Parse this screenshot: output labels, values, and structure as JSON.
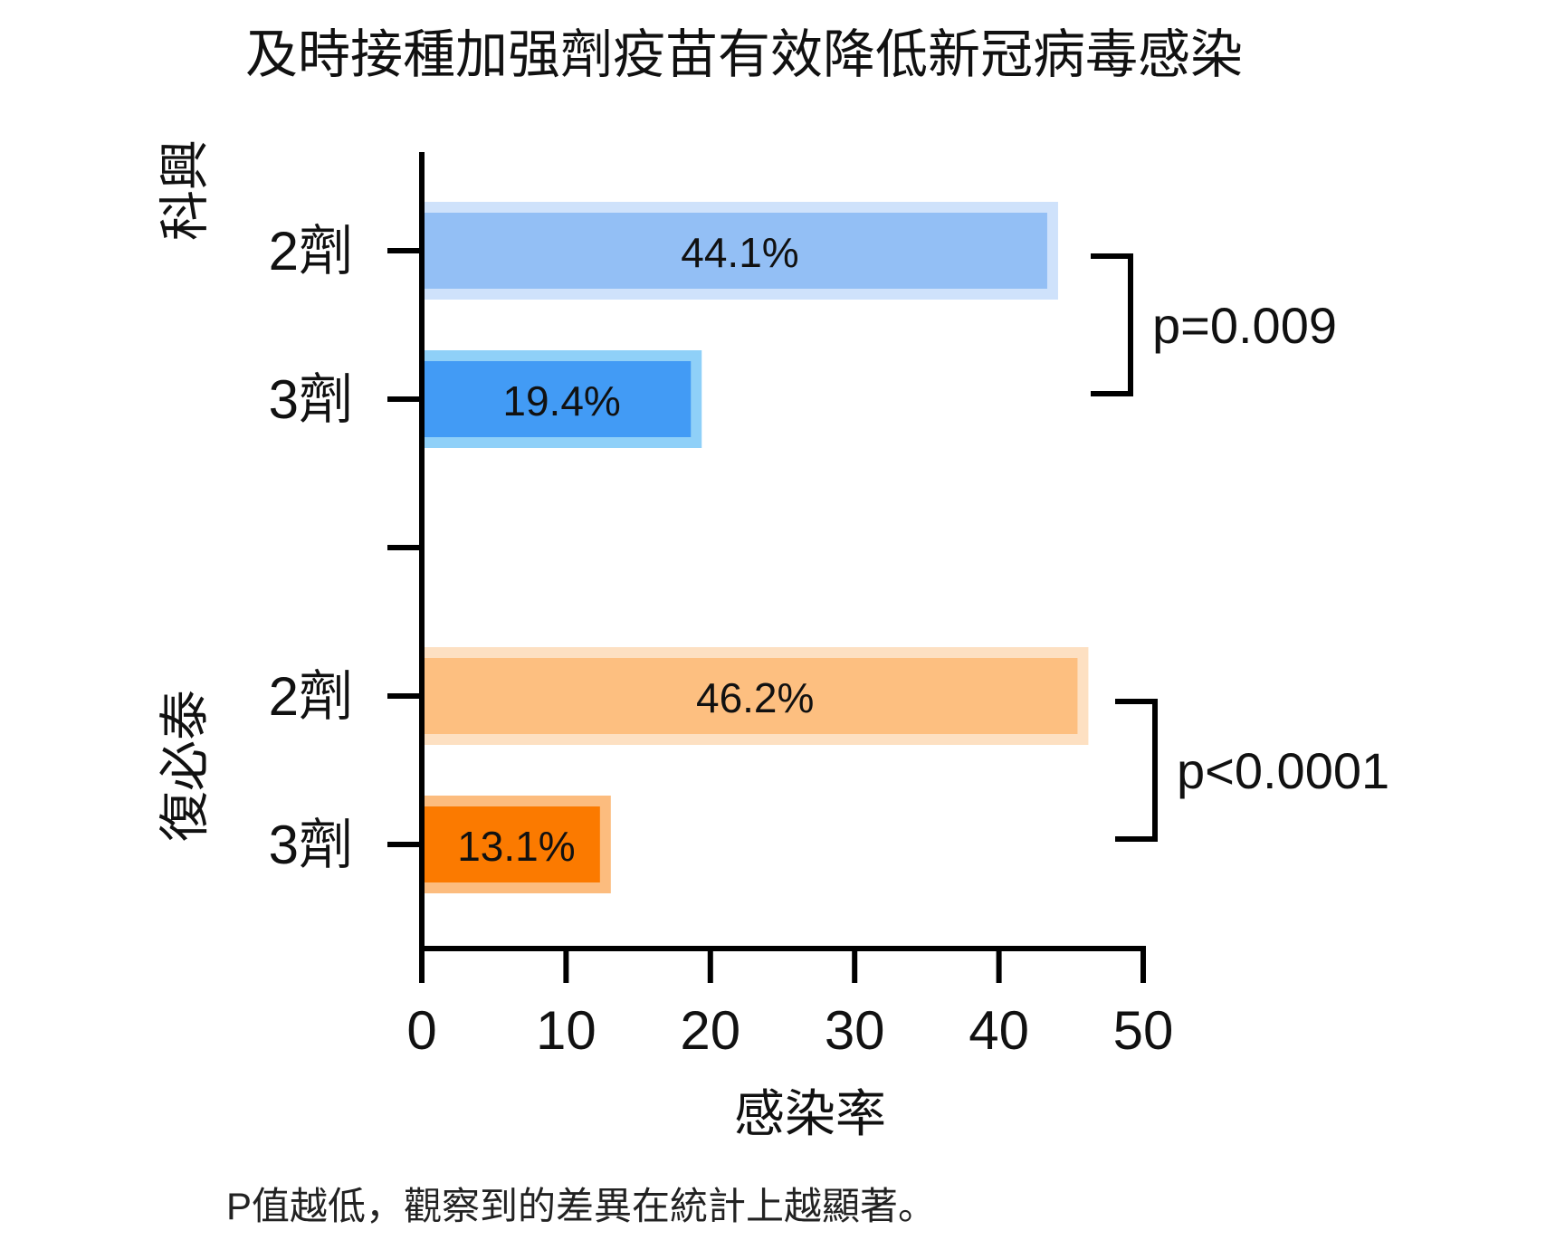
{
  "chart_data": {
    "type": "bar",
    "orientation": "horizontal",
    "title": "及時接種加强劑疫苗有效降低新冠病毒感染",
    "xlabel": "感染率",
    "xlim": [
      0,
      50
    ],
    "xticks": [
      "0",
      "10",
      "20",
      "30",
      "40",
      "50"
    ],
    "groups": [
      {
        "name": "科興",
        "bars": [
          {
            "category": "2劑",
            "value": 44.1,
            "label": "44.1%",
            "color": "#93bff5",
            "halo": "#cfe2fb"
          },
          {
            "category": "3劑",
            "value": 19.4,
            "label": "19.4%",
            "color": "#429bf5",
            "halo": "#8fd0f8"
          }
        ],
        "p_value": "p=0.009"
      },
      {
        "name": "復必泰",
        "bars": [
          {
            "category": "2劑",
            "value": 46.2,
            "label": "46.2%",
            "color": "#fdbf80",
            "halo": "#fde0c2"
          },
          {
            "category": "3劑",
            "value": 13.1,
            "label": "13.1%",
            "color": "#fb7a00",
            "halo": "#fcbc7e"
          }
        ],
        "p_value": "p<0.0001"
      }
    ],
    "grid": false,
    "legend": "none"
  },
  "footnote": "P值越低，觀察到的差異在統計上越顯著。"
}
